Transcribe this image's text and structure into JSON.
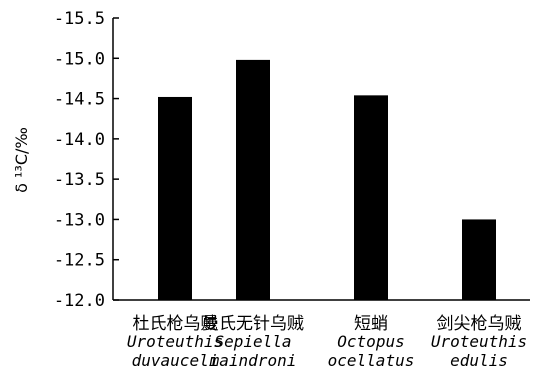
{
  "chart_data": {
    "type": "bar",
    "ylabel": "δ ¹³C/‰",
    "ylim": [
      -12.0,
      -15.5
    ],
    "yticks": [
      "-15.5",
      "-15.0",
      "-14.5",
      "-14.0",
      "-13.5",
      "-13.0",
      "-12.5",
      "-12.0"
    ],
    "grid": false,
    "categories": [
      {
        "cn": "杜氏枪乌贼",
        "latin1": "Uroteuthis",
        "latin2": "duvauceli"
      },
      {
        "cn": "曼氏无针乌贼",
        "latin1": "Sepiella",
        "latin2": "maindroni"
      },
      {
        "cn": "短蛸",
        "latin1": "Octopus",
        "latin2": "ocellatus"
      },
      {
        "cn": "剑尖枪乌贼",
        "latin1": "Uroteuthis",
        "latin2": "edulis"
      }
    ],
    "values": [
      -14.52,
      -14.98,
      -14.54,
      -13.0
    ],
    "bar_color": "#000000"
  }
}
